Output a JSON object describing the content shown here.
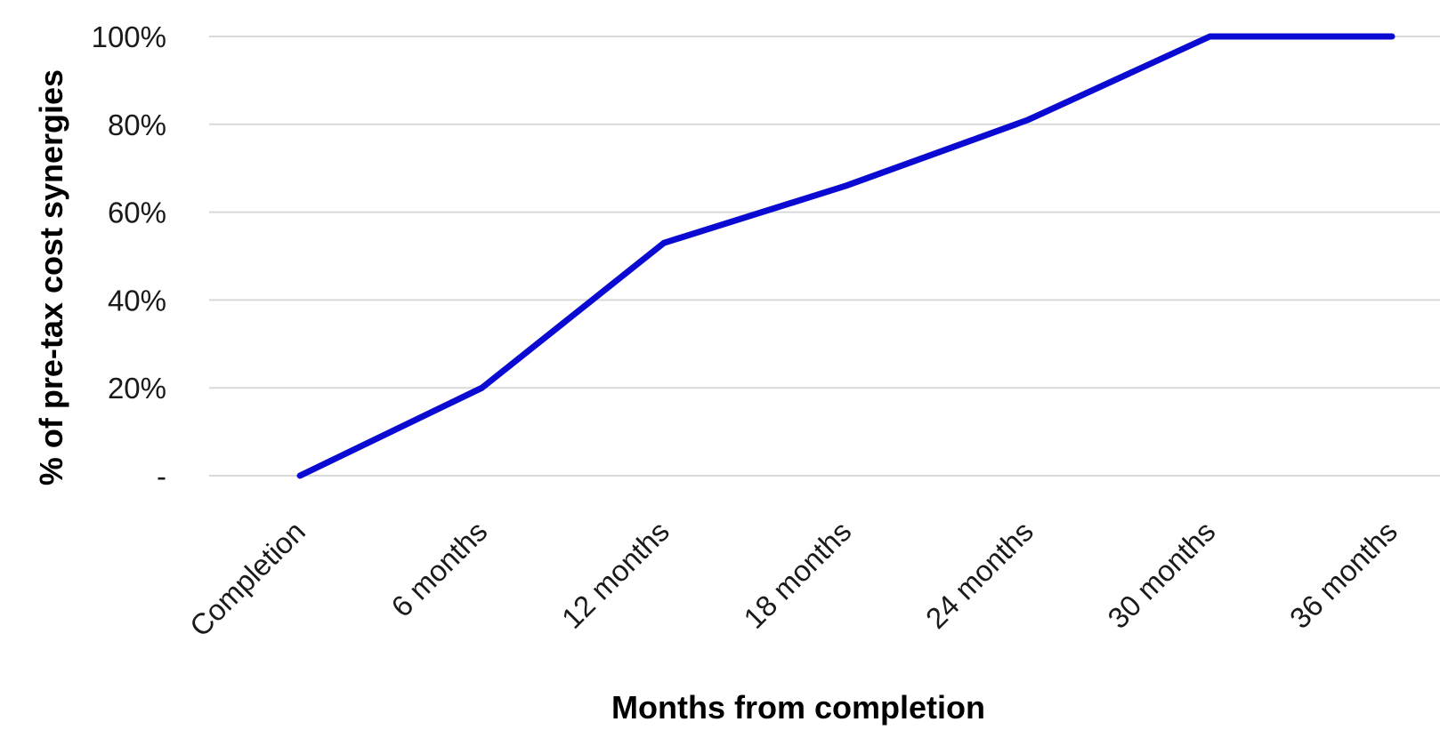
{
  "chart_data": {
    "type": "line",
    "title": "",
    "xlabel": "Months from completion",
    "ylabel": "% of pre-tax cost synergies",
    "categories": [
      "Completion",
      "6 months",
      "12 months",
      "18 months",
      "24 months",
      "30 months",
      "36 months"
    ],
    "series": [
      {
        "values": [
          0,
          20,
          53,
          66,
          81,
          100,
          100
        ],
        "color": "#0a0ad2"
      }
    ],
    "y_ticks": [
      {
        "value": 0,
        "label": "-"
      },
      {
        "value": 20,
        "label": "20%"
      },
      {
        "value": 40,
        "label": "40%"
      },
      {
        "value": 60,
        "label": "60%"
      },
      {
        "value": 80,
        "label": "80%"
      },
      {
        "value": 100,
        "label": "100%"
      }
    ],
    "ylim": [
      0,
      100
    ],
    "grid": true,
    "legend": "none"
  }
}
